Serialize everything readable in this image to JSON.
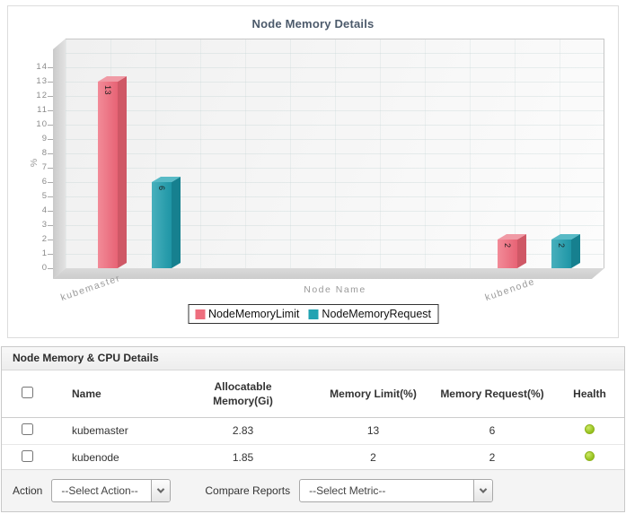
{
  "chart": {
    "title": "Node Memory Details",
    "y_axis_label": "%",
    "x_axis_label": "Node Name"
  },
  "chart_data": {
    "type": "bar",
    "categories": [
      "kubemaster",
      "kubenode"
    ],
    "series": [
      {
        "name": "NodeMemoryLimit",
        "color": "#ee6e7e",
        "values": [
          13,
          2
        ]
      },
      {
        "name": "NodeMemoryRequest",
        "color": "#21a3b2",
        "values": [
          6,
          2
        ]
      }
    ],
    "title": "Node Memory Details",
    "xlabel": "Node Name",
    "ylabel": "%",
    "ylim": [
      0,
      14
    ],
    "y_tick_step": 1,
    "grid": true,
    "legend_position": "bottom",
    "bar_value_labels": [
      [
        13,
        2
      ],
      [
        6,
        2
      ]
    ]
  },
  "table": {
    "section_title": "Node Memory & CPU Details",
    "columns": [
      "Name",
      "Allocatable Memory(Gi)",
      "Memory Limit(%)",
      "Memory Request(%)",
      "Health"
    ],
    "rows": [
      {
        "name": "kubemaster",
        "allocatable_memory_gi": "2.83",
        "memory_limit_pct": "13",
        "memory_request_pct": "6",
        "health": "green"
      },
      {
        "name": "kubenode",
        "allocatable_memory_gi": "1.85",
        "memory_limit_pct": "2",
        "memory_request_pct": "2",
        "health": "green"
      }
    ],
    "health_color": "#94c01d"
  },
  "actions": {
    "action_label": "Action",
    "action_select_value": "--Select Action--",
    "compare_label": "Compare Reports",
    "compare_select_value": "--Select Metric--"
  }
}
